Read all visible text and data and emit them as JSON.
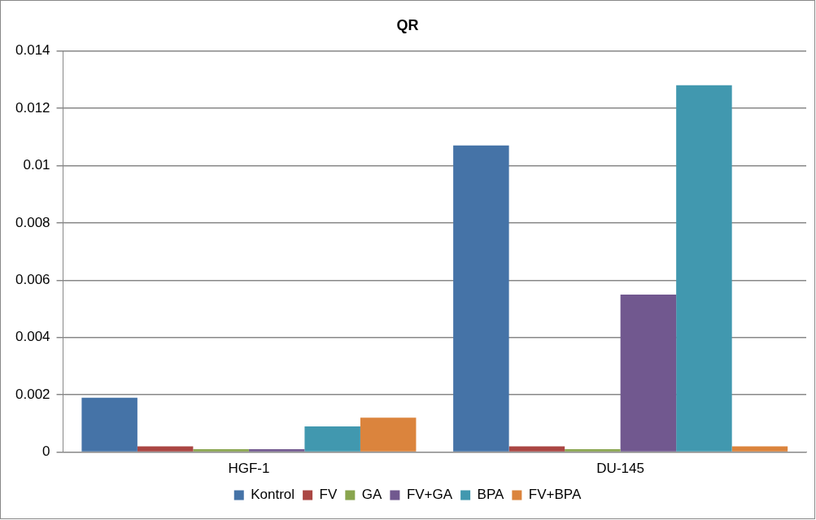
{
  "chart_data": {
    "type": "bar",
    "title": "QR",
    "categories": [
      "HGF-1",
      "DU-145"
    ],
    "series": [
      {
        "name": "Kontrol",
        "color": "#4573a7",
        "values": [
          0.0019,
          0.0107
        ]
      },
      {
        "name": "FV",
        "color": "#aa4643",
        "values": [
          0.0002,
          0.0002
        ]
      },
      {
        "name": "GA",
        "color": "#89a54e",
        "values": [
          0.0001,
          0.0001
        ]
      },
      {
        "name": "FV+GA",
        "color": "#71588f",
        "values": [
          0.0001,
          0.0055
        ]
      },
      {
        "name": "BPA",
        "color": "#4198af",
        "values": [
          0.0009,
          0.0128
        ]
      },
      {
        "name": "FV+BPA",
        "color": "#db843d",
        "values": [
          0.0012,
          0.0002
        ]
      }
    ],
    "ylim": [
      0,
      0.014
    ],
    "yticks": [
      0,
      0.002,
      0.004,
      0.006,
      0.008,
      0.01,
      0.012,
      0.014
    ],
    "grid": "y",
    "legend": "bottom"
  }
}
